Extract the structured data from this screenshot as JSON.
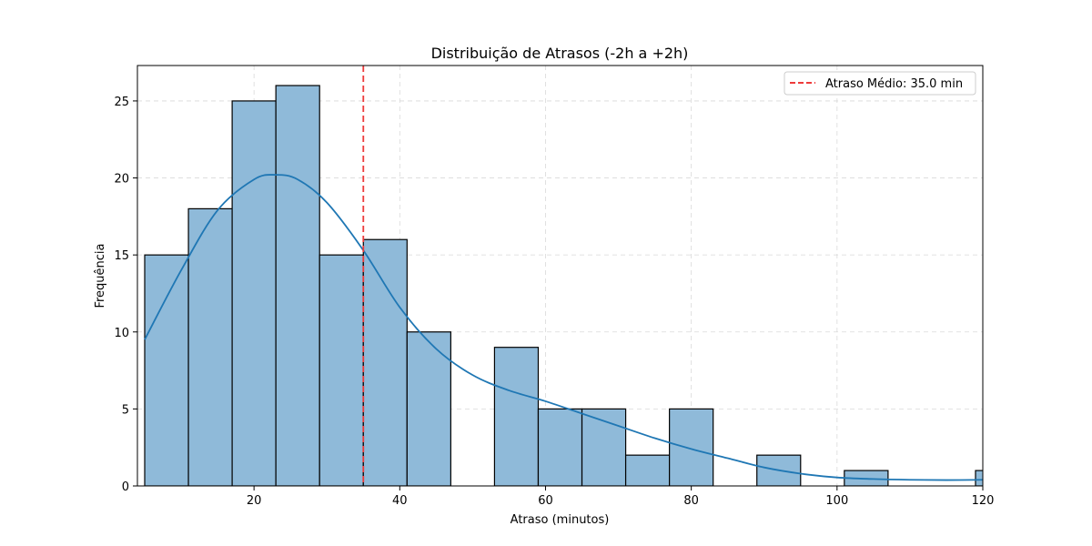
{
  "chart_data": {
    "type": "bar",
    "title": "Distribuição de Atrasos (-2h a +2h)",
    "xlabel": "Atraso (minutos)",
    "ylabel": "Frequência",
    "xlim": [
      4,
      120
    ],
    "ylim": [
      0,
      27.3
    ],
    "xticks": [
      20,
      40,
      60,
      80,
      100,
      120
    ],
    "yticks": [
      0,
      5,
      10,
      15,
      20,
      25
    ],
    "grid": true,
    "legend_position": "top-right",
    "bins": [
      {
        "x0": 5,
        "x1": 11,
        "count": 15
      },
      {
        "x0": 11,
        "x1": 17,
        "count": 18
      },
      {
        "x0": 17,
        "x1": 23,
        "count": 25
      },
      {
        "x0": 23,
        "x1": 29,
        "count": 26
      },
      {
        "x0": 29,
        "x1": 35,
        "count": 15
      },
      {
        "x0": 35,
        "x1": 41,
        "count": 16
      },
      {
        "x0": 41,
        "x1": 47,
        "count": 10
      },
      {
        "x0": 47,
        "x1": 53,
        "count": 0
      },
      {
        "x0": 53,
        "x1": 59,
        "count": 9
      },
      {
        "x0": 59,
        "x1": 65,
        "count": 5
      },
      {
        "x0": 65,
        "x1": 71,
        "count": 5
      },
      {
        "x0": 71,
        "x1": 77,
        "count": 2
      },
      {
        "x0": 77,
        "x1": 83,
        "count": 5
      },
      {
        "x0": 83,
        "x1": 89,
        "count": 0
      },
      {
        "x0": 89,
        "x1": 95,
        "count": 2
      },
      {
        "x0": 95,
        "x1": 101,
        "count": 0
      },
      {
        "x0": 101,
        "x1": 107,
        "count": 1
      },
      {
        "x0": 107,
        "x1": 113,
        "count": 0
      },
      {
        "x0": 113,
        "x1": 119,
        "count": 0
      },
      {
        "x0": 119,
        "x1": 125,
        "count": 1
      }
    ],
    "kde": {
      "x": [
        5,
        10,
        15,
        20,
        23,
        26,
        30,
        35,
        40,
        45,
        50,
        55,
        60,
        65,
        70,
        75,
        80,
        85,
        90,
        95,
        100,
        105,
        110,
        115,
        120
      ],
      "y": [
        9.5,
        14.0,
        17.9,
        19.9,
        20.2,
        19.9,
        18.4,
        15.3,
        11.6,
        8.9,
        7.2,
        6.2,
        5.5,
        4.7,
        3.9,
        3.1,
        2.4,
        1.8,
        1.2,
        0.8,
        0.55,
        0.45,
        0.4,
        0.38,
        0.4
      ]
    },
    "mean_line": {
      "x": 35.0,
      "label": "Atraso Médio: 35.0 min"
    },
    "colors": {
      "bar_fill": "#8fbad9",
      "bar_edge": "#000000",
      "kde_line": "#1f77b4",
      "mean_line": "#ee3b3b",
      "grid": "#d9d9d9"
    }
  }
}
